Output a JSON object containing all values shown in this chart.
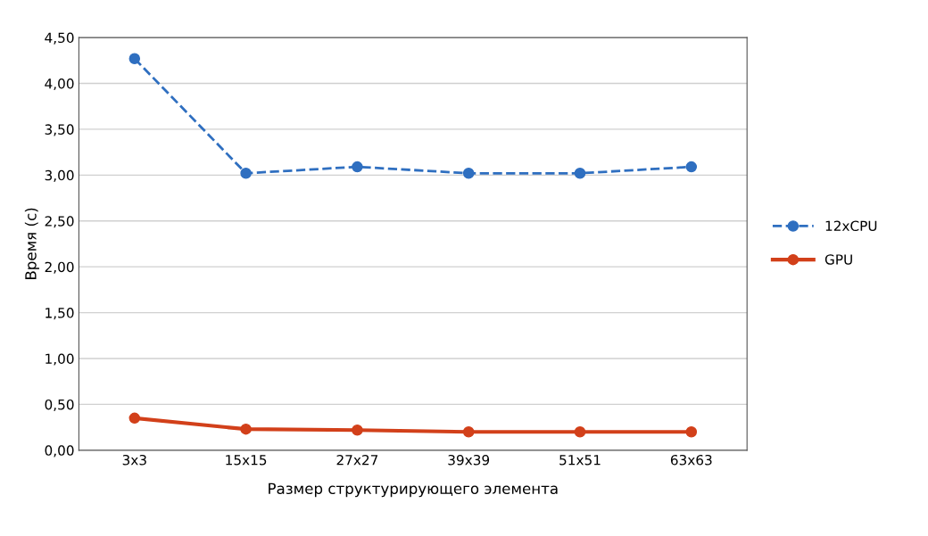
{
  "chart_data": {
    "type": "line",
    "xlabel": "Размер структурирующего элемента",
    "ylabel": "Время (с)",
    "categories": [
      "3x3",
      "15x15",
      "27x27",
      "39x39",
      "51x51",
      "63x63"
    ],
    "series": [
      {
        "name": "12xCPU",
        "color": "#2f6fc0",
        "line_style": "dashed",
        "values": [
          4.27,
          3.02,
          3.09,
          3.02,
          3.02,
          3.09
        ]
      },
      {
        "name": "GPU",
        "color": "#d2401a",
        "line_style": "solid",
        "values": [
          0.35,
          0.23,
          0.22,
          0.2,
          0.2,
          0.2
        ]
      }
    ],
    "ylim": [
      0,
      4.5
    ],
    "yticks": [
      {
        "value": 0,
        "label": "0,00"
      },
      {
        "value": 0.5,
        "label": "0,50"
      },
      {
        "value": 1,
        "label": "1,00"
      },
      {
        "value": 1.5,
        "label": "1,50"
      },
      {
        "value": 2,
        "label": "2,00"
      },
      {
        "value": 2.5,
        "label": "2,50"
      },
      {
        "value": 3,
        "label": "3,00"
      },
      {
        "value": 3.5,
        "label": "3,50"
      },
      {
        "value": 4,
        "label": "4,00"
      },
      {
        "value": 4.5,
        "label": "4,50"
      }
    ],
    "grid": "y",
    "legend": "right",
    "marker": "circle"
  }
}
